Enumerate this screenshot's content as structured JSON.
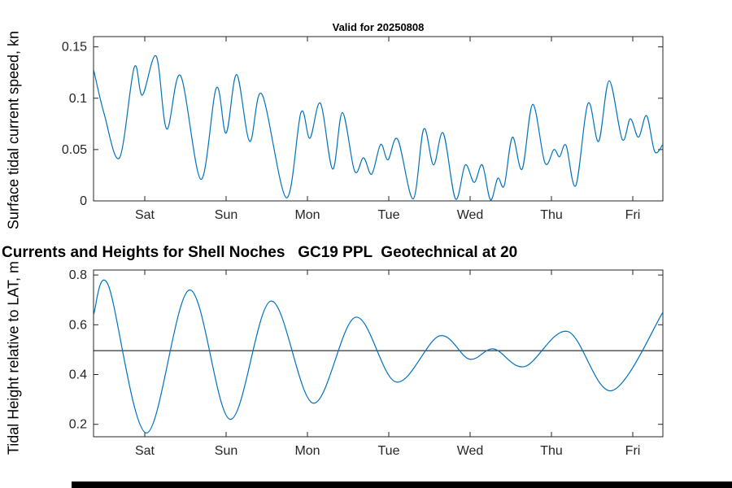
{
  "main_title": "Currents and Heights for Shell Noches   GC19 PPL  Geotechnical at 20",
  "colors": {
    "background": "#ffffff",
    "line": "#0072BD",
    "axis": "#262626",
    "reference": "#000000"
  },
  "chart_data": [
    {
      "type": "line",
      "title": "Valid for 20250808",
      "ylabel": "Surface tidal current speed, kn",
      "xlabel": "",
      "grid": false,
      "legend": false,
      "xlim": [
        0,
        7
      ],
      "ylim": [
        0,
        0.16
      ],
      "xticks": [
        0.63,
        1.63,
        2.63,
        3.63,
        4.63,
        5.63,
        6.63
      ],
      "xtick_labels": [
        "Sat",
        "Sun",
        "Mon",
        "Tue",
        "Wed",
        "Thu",
        "Fri"
      ],
      "yticks": [
        0,
        0.05,
        0.1,
        0.15
      ],
      "ytick_labels": [
        "0",
        "0.05",
        "0.1",
        "0.15"
      ],
      "line_color": "#0072BD",
      "points": [
        [
          0.0,
          0.128
        ],
        [
          0.13,
          0.085
        ],
        [
          0.32,
          0.042
        ],
        [
          0.5,
          0.13
        ],
        [
          0.6,
          0.103
        ],
        [
          0.77,
          0.141
        ],
        [
          0.9,
          0.07
        ],
        [
          1.07,
          0.122
        ],
        [
          1.32,
          0.021
        ],
        [
          1.51,
          0.11
        ],
        [
          1.63,
          0.066
        ],
        [
          1.76,
          0.123
        ],
        [
          1.92,
          0.058
        ],
        [
          2.07,
          0.104
        ],
        [
          2.37,
          0.003
        ],
        [
          2.55,
          0.086
        ],
        [
          2.66,
          0.061
        ],
        [
          2.79,
          0.095
        ],
        [
          2.94,
          0.031
        ],
        [
          3.06,
          0.086
        ],
        [
          3.21,
          0.029
        ],
        [
          3.32,
          0.042
        ],
        [
          3.42,
          0.026
        ],
        [
          3.53,
          0.055
        ],
        [
          3.62,
          0.04
        ],
        [
          3.74,
          0.06
        ],
        [
          3.93,
          0.002
        ],
        [
          4.06,
          0.07
        ],
        [
          4.18,
          0.035
        ],
        [
          4.3,
          0.066
        ],
        [
          4.45,
          0.002
        ],
        [
          4.57,
          0.035
        ],
        [
          4.68,
          0.018
        ],
        [
          4.78,
          0.035
        ],
        [
          4.88,
          0.001
        ],
        [
          4.97,
          0.022
        ],
        [
          5.05,
          0.015
        ],
        [
          5.15,
          0.062
        ],
        [
          5.27,
          0.031
        ],
        [
          5.4,
          0.094
        ],
        [
          5.55,
          0.037
        ],
        [
          5.66,
          0.05
        ],
        [
          5.73,
          0.043
        ],
        [
          5.81,
          0.054
        ],
        [
          5.93,
          0.015
        ],
        [
          6.08,
          0.095
        ],
        [
          6.21,
          0.058
        ],
        [
          6.34,
          0.117
        ],
        [
          6.5,
          0.06
        ],
        [
          6.6,
          0.08
        ],
        [
          6.7,
          0.062
        ],
        [
          6.8,
          0.083
        ],
        [
          6.9,
          0.048
        ],
        [
          7.0,
          0.055
        ]
      ]
    },
    {
      "type": "line",
      "ylabel": "Tidal Height relative to LAT, m",
      "xlabel": "",
      "grid": false,
      "legend": false,
      "xlim": [
        0,
        7
      ],
      "ylim": [
        0.15,
        0.82
      ],
      "xticks": [
        0.63,
        1.63,
        2.63,
        3.63,
        4.63,
        5.63,
        6.63
      ],
      "xtick_labels": [
        "Sat",
        "Sun",
        "Mon",
        "Tue",
        "Wed",
        "Thu",
        "Fri"
      ],
      "yticks": [
        0.2,
        0.4,
        0.6,
        0.8
      ],
      "ytick_labels": [
        "0.2",
        "0.4",
        "0.6",
        "0.8"
      ],
      "line_color": "#0072BD",
      "reference_line": 0.496,
      "points": [
        [
          0.0,
          0.64
        ],
        [
          0.18,
          0.76
        ],
        [
          0.65,
          0.165
        ],
        [
          1.18,
          0.74
        ],
        [
          1.68,
          0.22
        ],
        [
          2.18,
          0.695
        ],
        [
          2.7,
          0.285
        ],
        [
          3.22,
          0.63
        ],
        [
          3.72,
          0.37
        ],
        [
          4.25,
          0.555
        ],
        [
          4.62,
          0.462
        ],
        [
          4.92,
          0.503
        ],
        [
          5.3,
          0.432
        ],
        [
          5.83,
          0.573
        ],
        [
          6.37,
          0.335
        ],
        [
          7.0,
          0.65
        ]
      ]
    }
  ]
}
